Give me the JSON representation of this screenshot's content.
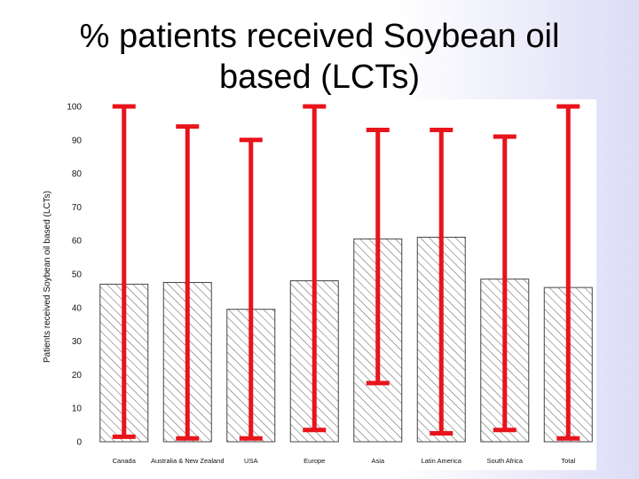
{
  "slide": {
    "title_line1": "% patients received Soybean oil",
    "title_line2": "based (LCTs)"
  },
  "chart_data": {
    "type": "bar",
    "title": "% patients received Soybean oil based (LCTs)",
    "xlabel": "",
    "ylabel": "Patients received Soybean oil based (LCTs)",
    "ylim": [
      0,
      100
    ],
    "yticks": [
      0,
      10,
      20,
      30,
      40,
      50,
      60,
      70,
      80,
      90,
      100
    ],
    "categories": [
      "Canada",
      "Australia & New Zealand",
      "USA",
      "Europe",
      "Asia",
      "Latin America",
      "South Africa",
      "Total"
    ],
    "values": [
      47,
      47.5,
      39.5,
      48,
      60.5,
      61,
      48.5,
      46
    ],
    "error_low": [
      1.5,
      1,
      1,
      3.5,
      17.5,
      2.5,
      3.5,
      1
    ],
    "error_high": [
      100,
      94,
      90,
      100,
      93,
      93,
      91,
      100
    ],
    "grid": false,
    "bar_pattern": "diagonal-hatch",
    "colors": {
      "error_bar": "#e8141b",
      "bar_stroke": "#444444",
      "hatch": "#555555"
    }
  }
}
